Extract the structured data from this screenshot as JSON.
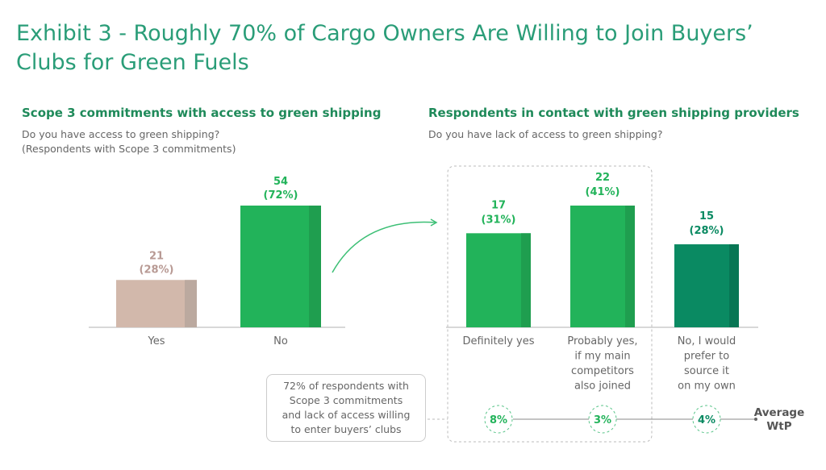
{
  "title": "Exhibit 3 - Roughly 70% of Cargo Owners Are Willing to Join Buyers’ Clubs for Green Fuels",
  "colors": {
    "title": "#2a9d78",
    "green": "#22b35a",
    "green_shade": "#1f9e4f",
    "dark_green": "#0a8a62",
    "dark_green_shade": "#087654",
    "taupe": "#d2b8ab",
    "taupe_shade": "#bba99f",
    "taupe_label": "#b89a94"
  },
  "chart_data": [
    {
      "type": "bar",
      "title": "Scope 3 commitments with access to green shipping",
      "subtitle": [
        "Do you have access to green shipping?",
        "(Respondents with Scope 3 commitments)"
      ],
      "categories": [
        "Yes",
        "No"
      ],
      "values": [
        21,
        54
      ],
      "labels": [
        "(28%)",
        "(72%)"
      ]
    },
    {
      "type": "bar",
      "title": "Respondents in contact with green shipping providers",
      "subtitle": [
        "Do you have lack of access to green shipping?"
      ],
      "categories": [
        [
          "Definitely yes"
        ],
        [
          "Probably yes,",
          "if my main",
          "competitors",
          "also joined"
        ],
        [
          "No, I would",
          "prefer to",
          "source it",
          "on my own"
        ]
      ],
      "values": [
        17,
        22,
        15
      ],
      "labels": [
        "(31%)",
        "(41%)",
        "(28%)"
      ],
      "wtp_label": [
        "Average",
        "WtP"
      ],
      "wtp": [
        "8%",
        "3%",
        "4%"
      ]
    }
  ],
  "callout": [
    "72% of respondents with",
    "Scope 3 commitments",
    "and lack of access willing",
    "to enter buyers’ clubs"
  ]
}
